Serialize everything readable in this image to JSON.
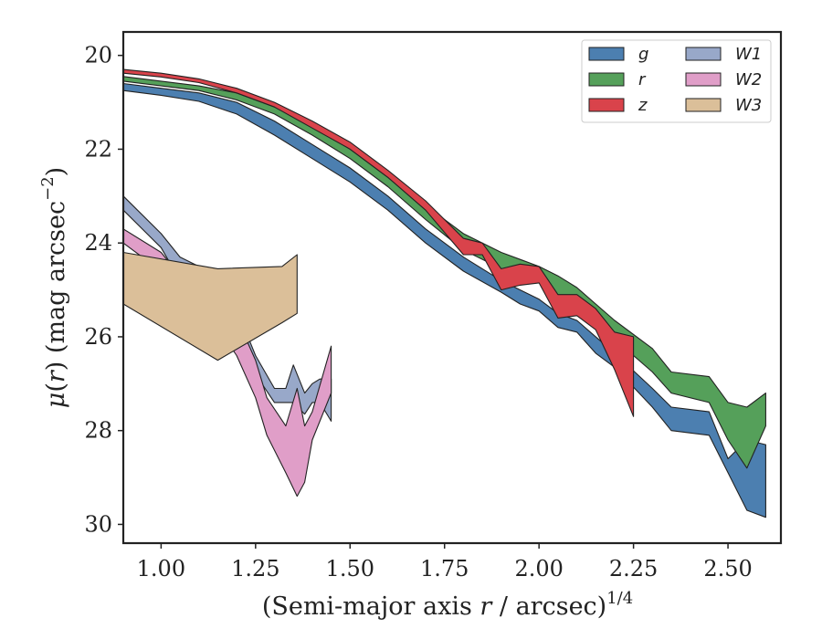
{
  "chart_data": {
    "type": "area",
    "xlabel": "(Semi-major axis r / arcsec)^1/4",
    "xlabel_parts": [
      "(Semi-major axis ",
      "r",
      " / arcsec)",
      "1/4"
    ],
    "ylabel": "μ(r) (mag arcsec^-2)",
    "ylabel_parts": [
      "μ",
      "(",
      "r",
      ") (mag arcsec",
      "−2",
      ")"
    ],
    "xlim": [
      0.9,
      2.64
    ],
    "ylim": [
      30.4,
      19.5
    ],
    "y_inverted": true,
    "xticks": [
      1.0,
      1.25,
      1.5,
      1.75,
      2.0,
      2.25,
      2.5
    ],
    "xtick_labels": [
      "1.00",
      "1.25",
      "1.50",
      "1.75",
      "2.00",
      "2.25",
      "2.50"
    ],
    "yticks": [
      20,
      22,
      24,
      26,
      28,
      30
    ],
    "ytick_labels": [
      "20",
      "22",
      "24",
      "26",
      "28",
      "30"
    ],
    "legend": {
      "position": "top-right",
      "columns": 2
    },
    "series": [
      {
        "name": "g",
        "color": "#4c7fb0",
        "x": [
          0.9,
          1.0,
          1.1,
          1.2,
          1.3,
          1.4,
          1.5,
          1.6,
          1.7,
          1.8,
          1.9,
          1.95,
          2.0,
          2.05,
          2.1,
          2.15,
          2.2,
          2.3,
          2.35,
          2.45,
          2.5,
          2.55,
          2.6
        ],
        "y_upper": [
          20.6,
          20.7,
          20.8,
          21.0,
          21.4,
          21.9,
          22.4,
          23.0,
          23.7,
          24.3,
          24.8,
          25.0,
          25.2,
          25.5,
          25.65,
          26.0,
          26.35,
          27.1,
          27.5,
          27.6,
          28.6,
          28.2,
          28.3
        ],
        "y_lower": [
          20.75,
          20.85,
          20.98,
          21.25,
          21.7,
          22.2,
          22.7,
          23.3,
          24.0,
          24.6,
          25.05,
          25.3,
          25.45,
          25.8,
          25.9,
          26.35,
          26.65,
          27.5,
          28.0,
          28.1,
          28.9,
          29.7,
          29.85
        ]
      },
      {
        "name": "r",
        "color": "#55a05a",
        "x": [
          0.9,
          1.0,
          1.1,
          1.2,
          1.3,
          1.4,
          1.5,
          1.6,
          1.7,
          1.8,
          1.9,
          1.95,
          2.0,
          2.05,
          2.1,
          2.15,
          2.2,
          2.3,
          2.35,
          2.45,
          2.5,
          2.55,
          2.6
        ],
        "y_upper": [
          20.45,
          20.55,
          20.65,
          20.8,
          21.1,
          21.5,
          22.0,
          22.6,
          23.2,
          23.8,
          24.2,
          24.35,
          24.5,
          24.7,
          24.95,
          25.3,
          25.65,
          26.25,
          26.75,
          26.85,
          27.4,
          27.5,
          27.2
        ],
        "y_lower": [
          20.55,
          20.65,
          20.75,
          20.95,
          21.25,
          21.7,
          22.2,
          22.8,
          23.5,
          24.15,
          24.55,
          24.7,
          24.85,
          25.1,
          25.35,
          25.7,
          26.05,
          26.75,
          27.2,
          27.4,
          28.2,
          28.8,
          27.9
        ]
      },
      {
        "name": "z",
        "color": "#d9434b",
        "x": [
          0.9,
          1.0,
          1.1,
          1.2,
          1.3,
          1.4,
          1.5,
          1.6,
          1.7,
          1.8,
          1.85,
          1.9,
          1.95,
          2.0,
          2.05,
          2.1,
          2.15,
          2.2,
          2.25
        ],
        "y_upper": [
          20.3,
          20.38,
          20.5,
          20.7,
          21.0,
          21.4,
          21.85,
          22.45,
          23.1,
          23.9,
          24.0,
          24.55,
          24.45,
          24.5,
          25.1,
          25.1,
          25.4,
          25.9,
          26.0
        ],
        "y_lower": [
          20.38,
          20.46,
          20.58,
          20.8,
          21.1,
          21.55,
          22.0,
          22.6,
          23.3,
          24.25,
          24.25,
          25.0,
          24.9,
          24.85,
          25.6,
          25.55,
          25.85,
          26.7,
          27.7
        ]
      },
      {
        "name": "W1",
        "color": "#98a8c9",
        "x": [
          0.9,
          1.0,
          1.05,
          1.1,
          1.15,
          1.2,
          1.25,
          1.3,
          1.33,
          1.35,
          1.38,
          1.4,
          1.42,
          1.45
        ],
        "y_upper": [
          23.0,
          23.8,
          24.3,
          24.5,
          24.9,
          25.4,
          26.4,
          27.1,
          27.1,
          26.6,
          27.2,
          27.0,
          26.9,
          26.9
        ],
        "y_lower": [
          23.3,
          24.1,
          24.8,
          25.0,
          25.4,
          25.9,
          26.8,
          27.4,
          27.4,
          27.4,
          27.65,
          27.4,
          27.4,
          27.8
        ]
      },
      {
        "name": "W2",
        "color": "#e09ec8",
        "x": [
          0.9,
          1.0,
          1.05,
          1.1,
          1.15,
          1.2,
          1.25,
          1.28,
          1.33,
          1.36,
          1.38,
          1.4,
          1.45
        ],
        "y_upper": [
          23.7,
          24.2,
          24.7,
          25.0,
          25.3,
          25.6,
          26.5,
          27.3,
          27.9,
          27.1,
          27.9,
          27.6,
          26.2
        ],
        "y_lower": [
          24.0,
          24.6,
          25.1,
          25.5,
          25.8,
          26.4,
          27.3,
          28.1,
          28.9,
          29.4,
          29.1,
          28.2,
          27.2
        ]
      },
      {
        "name": "W3",
        "color": "#dbbf99",
        "x": [
          0.9,
          1.15,
          1.32,
          1.36
        ],
        "y_upper": [
          24.2,
          24.55,
          24.5,
          24.25
        ],
        "y_lower": [
          25.3,
          26.5,
          25.7,
          25.5
        ]
      }
    ]
  }
}
